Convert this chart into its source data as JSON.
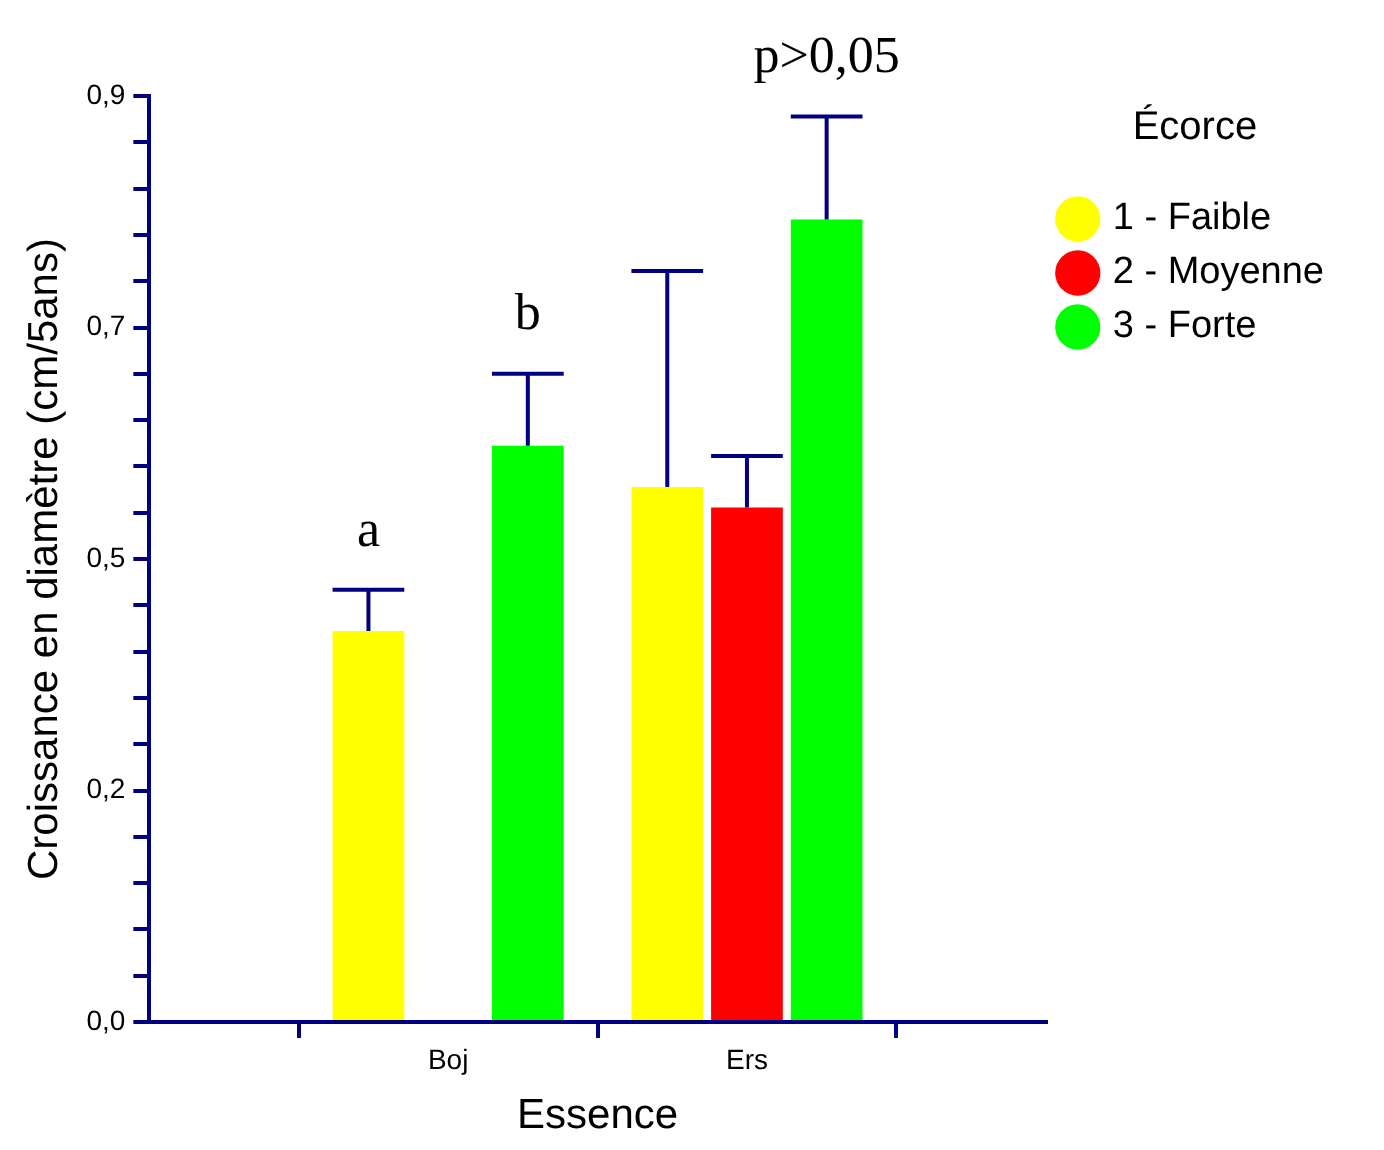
{
  "chart_data": {
    "type": "bar",
    "xlabel": "Essence",
    "ylabel": "Croissance en diamètre (cm/5ans)",
    "legend_title": "Écorce",
    "legend": "top right",
    "categories": [
      "Boj",
      "Ers"
    ],
    "series": [
      {
        "name": "1 - Faible",
        "color": "#ffff00",
        "values": [
          0.38,
          0.52
        ],
        "errors": [
          [
            0.38,
            0.42
          ],
          [
            0.52,
            0.73
          ]
        ]
      },
      {
        "name": "2 - Moyenne",
        "color": "#ff0000",
        "values": [
          null,
          0.5
        ],
        "errors": [
          null,
          [
            0.5,
            0.55
          ]
        ]
      },
      {
        "name": "3 - Forte",
        "color": "#00ff00",
        "values": [
          0.56,
          0.78
        ],
        "errors": [
          [
            0.56,
            0.63
          ],
          [
            0.78,
            0.88
          ]
        ]
      }
    ],
    "ylim": [
      0,
      0.9
    ],
    "yticks": [
      {
        "value": 0,
        "label": "0,0"
      },
      {
        "value": 0.045,
        "label": null
      },
      {
        "value": 0.09,
        "label": null
      },
      {
        "value": 0.135,
        "label": null
      },
      {
        "value": 0.18,
        "label": null
      },
      {
        "value": 0.225,
        "label": "0,2"
      },
      {
        "value": 0.27,
        "label": null
      },
      {
        "value": 0.315,
        "label": null
      },
      {
        "value": 0.36,
        "label": null
      },
      {
        "value": 0.405,
        "label": null
      },
      {
        "value": 0.45,
        "label": "0,5"
      },
      {
        "value": 0.495,
        "label": null
      },
      {
        "value": 0.54,
        "label": null
      },
      {
        "value": 0.585,
        "label": null
      },
      {
        "value": 0.63,
        "label": null
      },
      {
        "value": 0.675,
        "label": "0,7"
      },
      {
        "value": 0.72,
        "label": null
      },
      {
        "value": 0.765,
        "label": null
      },
      {
        "value": 0.81,
        "label": null
      },
      {
        "value": 0.855,
        "label": null
      },
      {
        "value": 0.9,
        "label": "0,9"
      }
    ],
    "annotations": [
      "a",
      "b",
      "p>0,05"
    ],
    "grid": false
  }
}
